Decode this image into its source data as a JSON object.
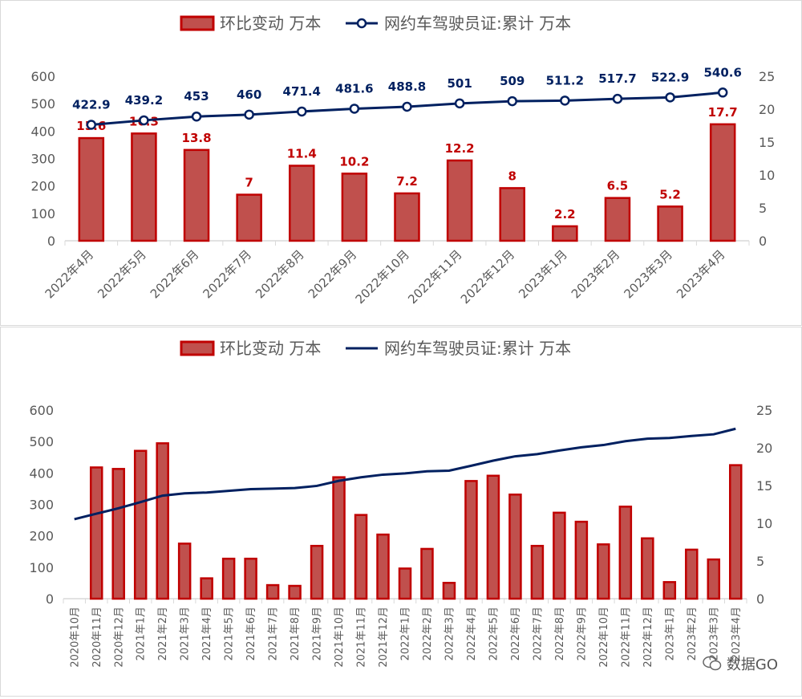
{
  "colors": {
    "bar_fill": "#c0504d",
    "bar_stroke": "#c00000",
    "line": "#002060",
    "label_bar": "#c00000",
    "label_line": "#002060",
    "axis_text": "#595959"
  },
  "watermark": {
    "icon": "wechat-icon",
    "text": "数据GO"
  },
  "chart_data": [
    {
      "type": "bar+line",
      "legend": [
        "环比变动 万本",
        "网约车驾驶员证:累计 万本"
      ],
      "legend_placement": "top",
      "categories": [
        "2022年4月",
        "2022年5月",
        "2022年6月",
        "2022年7月",
        "2022年8月",
        "2022年9月",
        "2022年10月",
        "2022年11月",
        "2022年12月",
        "2023年1月",
        "2023年2月",
        "2023年3月",
        "2023年4月"
      ],
      "series": [
        {
          "name": "环比变动 万本",
          "type": "bar",
          "axis": "right",
          "values": [
            15.6,
            16.3,
            13.8,
            7,
            11.4,
            10.2,
            7.2,
            12.2,
            8,
            2.2,
            6.5,
            5.2,
            17.7
          ],
          "data_labels": [
            "15.6",
            "16.3",
            "13.8",
            "7",
            "11.4",
            "10.2",
            "7.2",
            "12.2",
            "8",
            "2.2",
            "6.5",
            "5.2",
            "17.7"
          ]
        },
        {
          "name": "网约车驾驶员证:累计 万本",
          "type": "line",
          "axis": "left",
          "markers": true,
          "values": [
            422.9,
            439.2,
            453,
            460,
            471.4,
            481.6,
            488.8,
            501,
            509,
            511.2,
            517.7,
            522.9,
            540.6
          ],
          "data_labels": [
            "422.9",
            "439.2",
            "453",
            "460",
            "471.4",
            "481.6",
            "488.8",
            "501",
            "509",
            "511.2",
            "517.7",
            "522.9",
            "540.6"
          ]
        }
      ],
      "left_axis": {
        "range": [
          0,
          600
        ],
        "ticks": [
          "0",
          "100",
          "200",
          "300",
          "400",
          "500",
          "600"
        ]
      },
      "right_axis": {
        "range": [
          0,
          25
        ],
        "ticks": [
          "0",
          "5",
          "10",
          "15",
          "20",
          "25"
        ]
      },
      "grid": false
    },
    {
      "type": "bar+line",
      "legend": [
        "环比变动 万本",
        "网约车驾驶员证:累计 万本"
      ],
      "legend_placement": "top",
      "categories": [
        "2020年10月",
        "2020年11月",
        "2020年12月",
        "2021年1月",
        "2021年2月",
        "2021年3月",
        "2021年4月",
        "2021年5月",
        "2021年6月",
        "2021年7月",
        "2021年8月",
        "2021年9月",
        "2021年10月",
        "2021年11月",
        "2021年12月",
        "2022年1月",
        "2022年2月",
        "2022年3月",
        "2022年4月",
        "2022年5月",
        "2022年6月",
        "2022年7月",
        "2022年8月",
        "2022年9月",
        "2022年10月",
        "2022年11月",
        "2022年12月",
        "2023年1月",
        "2023年2月",
        "2023年3月",
        "2023年4月"
      ],
      "series": [
        {
          "name": "环比变动 万本",
          "type": "bar",
          "axis": "right",
          "values": [
            null,
            17.4,
            17.2,
            19.6,
            20.6,
            7.3,
            2.7,
            5.3,
            5.3,
            1.8,
            1.7,
            7.0,
            16.1,
            11.1,
            8.5,
            4.0,
            6.6,
            2.1,
            15.6,
            16.3,
            13.8,
            7,
            11.4,
            10.2,
            7.2,
            12.2,
            8,
            2.2,
            6.5,
            5.2,
            17.7
          ]
        },
        {
          "name": "网约车驾驶员证:累计 万本",
          "type": "line",
          "axis": "left",
          "markers": false,
          "values": [
            253,
            270.4,
            287.6,
            307.2,
            327.8,
            335.1,
            337.8,
            343.1,
            348.4,
            350.2,
            351.9,
            358.9,
            375,
            386.1,
            394.6,
            398.6,
            405.2,
            407.3,
            422.9,
            439.2,
            453,
            460,
            471.4,
            481.6,
            488.8,
            501,
            509,
            511.2,
            517.7,
            522.9,
            540.6
          ]
        }
      ],
      "left_axis": {
        "range": [
          0,
          600
        ],
        "ticks": [
          "0",
          "100",
          "200",
          "300",
          "400",
          "500",
          "600"
        ]
      },
      "right_axis": {
        "range": [
          0,
          25
        ],
        "ticks": [
          "0",
          "5",
          "10",
          "15",
          "20",
          "25"
        ]
      },
      "grid": false
    }
  ]
}
